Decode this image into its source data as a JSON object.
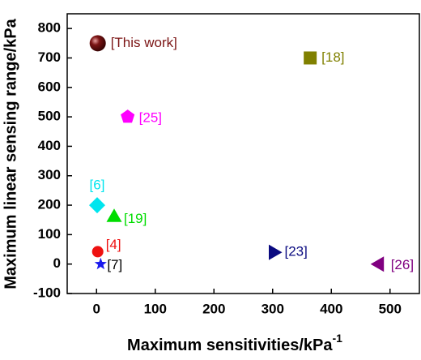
{
  "chart_data": {
    "type": "scatter",
    "x_label": "Maximum sensitivities/kPa",
    "x_label_sup": "-1",
    "y_label": "Maximum linear sensing range/kPa",
    "xlim": [
      -50,
      550
    ],
    "ylim": [
      -100,
      850
    ],
    "xticks": [
      0,
      100,
      200,
      300,
      400,
      500
    ],
    "yticks": [
      -100,
      0,
      100,
      200,
      300,
      400,
      500,
      600,
      700,
      800
    ],
    "series": [
      {
        "name": "[This work]",
        "color": "#7b1414",
        "marker": "sphere",
        "x": [
          2
        ],
        "values": [
          750
        ]
      },
      {
        "name": "[18]",
        "color": "#808000",
        "marker": "square",
        "x": [
          364
        ],
        "values": [
          700
        ]
      },
      {
        "name": "[25]",
        "color": "#ff00ff",
        "marker": "pentagon",
        "x": [
          53
        ],
        "values": [
          500
        ]
      },
      {
        "name": "[6]",
        "color": "#00e5ee",
        "marker": "diamond",
        "x": [
          1
        ],
        "values": [
          200
        ]
      },
      {
        "name": "[19]",
        "color": "#00dd00",
        "marker": "triangle-up",
        "x": [
          30
        ],
        "values": [
          158
        ]
      },
      {
        "name": "[4]",
        "color": "#ee1111",
        "marker": "circle",
        "x": [
          2
        ],
        "values": [
          42
        ]
      },
      {
        "name": "[7]",
        "color": "#1a1aee",
        "label_color": "#000000",
        "marker": "star",
        "x": [
          7
        ],
        "values": [
          0
        ]
      },
      {
        "name": "[23]",
        "color": "#0a0a80",
        "marker": "triangle-right",
        "x": [
          301
        ],
        "values": [
          40
        ]
      },
      {
        "name": "[26]",
        "color": "#800080",
        "marker": "triangle-left",
        "x": [
          482
        ],
        "values": [
          0
        ]
      }
    ]
  }
}
